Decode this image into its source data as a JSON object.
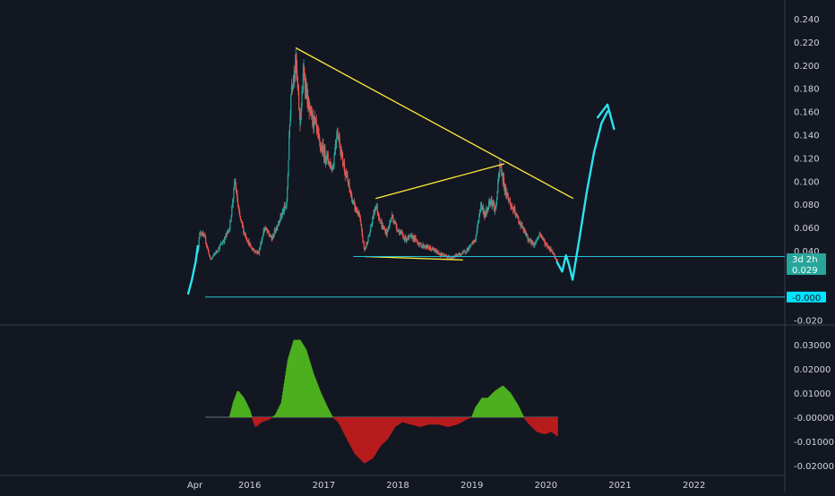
{
  "colors": {
    "background": "#131722",
    "axis_text": "#d1d4dc",
    "grid": "#1f2431",
    "pane_divider": "#3a3e4a",
    "candle_up": "#26a69a",
    "candle_down": "#ef5350",
    "trendline": "#ffeb3b",
    "drawing": "#29e3f0",
    "hline": "#22c1d6",
    "hist_up": "#4caf1f",
    "hist_down": "#b71c1c",
    "badge": "#26a69a",
    "badge_cyan": "#00e5ff"
  },
  "chart_data": [
    {
      "type": "candlestick",
      "title": "",
      "x_labels": [
        "Apr",
        "2016",
        "2017",
        "2018",
        "2019",
        "2020",
        "2021",
        "2022"
      ],
      "y_ticks": [
        "0.240",
        "0.220",
        "0.200",
        "0.180",
        "0.160",
        "0.140",
        "0.120",
        "0.100",
        "0.080",
        "0.060",
        "0.040",
        "-0.020"
      ],
      "ylim": [
        -0.02,
        0.24
      ],
      "x_range": [
        2015.0,
        2022.0
      ],
      "price_badges": [
        {
          "label": "3d 2h",
          "value": 0.036,
          "style": "badge"
        },
        {
          "label": "0.029",
          "value": 0.029,
          "style": "badge"
        },
        {
          "label": "-0.000",
          "value": 0.0,
          "style": "badge_cyan"
        }
      ],
      "price_path": [
        {
          "t": 2015.3,
          "v": 0.04
        },
        {
          "t": 2015.33,
          "v": 0.057
        },
        {
          "t": 2015.4,
          "v": 0.05
        },
        {
          "t": 2015.47,
          "v": 0.032
        },
        {
          "t": 2015.58,
          "v": 0.042
        },
        {
          "t": 2015.66,
          "v": 0.05
        },
        {
          "t": 2015.73,
          "v": 0.06
        },
        {
          "t": 2015.8,
          "v": 0.1
        },
        {
          "t": 2015.86,
          "v": 0.07
        },
        {
          "t": 2015.93,
          "v": 0.055
        },
        {
          "t": 2016.02,
          "v": 0.042
        },
        {
          "t": 2016.12,
          "v": 0.038
        },
        {
          "t": 2016.2,
          "v": 0.06
        },
        {
          "t": 2016.3,
          "v": 0.05
        },
        {
          "t": 2016.42,
          "v": 0.07
        },
        {
          "t": 2016.5,
          "v": 0.08
        },
        {
          "t": 2016.56,
          "v": 0.18
        },
        {
          "t": 2016.62,
          "v": 0.205
        },
        {
          "t": 2016.68,
          "v": 0.15
        },
        {
          "t": 2016.73,
          "v": 0.195
        },
        {
          "t": 2016.8,
          "v": 0.16
        },
        {
          "t": 2016.88,
          "v": 0.15
        },
        {
          "t": 2016.95,
          "v": 0.13
        },
        {
          "t": 2017.05,
          "v": 0.12
        },
        {
          "t": 2017.12,
          "v": 0.11
        },
        {
          "t": 2017.18,
          "v": 0.145
        },
        {
          "t": 2017.25,
          "v": 0.12
        },
        {
          "t": 2017.32,
          "v": 0.1
        },
        {
          "t": 2017.4,
          "v": 0.08
        },
        {
          "t": 2017.48,
          "v": 0.07
        },
        {
          "t": 2017.55,
          "v": 0.04
        },
        {
          "t": 2017.62,
          "v": 0.055
        },
        {
          "t": 2017.7,
          "v": 0.08
        },
        {
          "t": 2017.78,
          "v": 0.062
        },
        {
          "t": 2017.85,
          "v": 0.055
        },
        {
          "t": 2017.92,
          "v": 0.07
        },
        {
          "t": 2018.0,
          "v": 0.058
        },
        {
          "t": 2018.1,
          "v": 0.05
        },
        {
          "t": 2018.2,
          "v": 0.052
        },
        {
          "t": 2018.3,
          "v": 0.045
        },
        {
          "t": 2018.4,
          "v": 0.043
        },
        {
          "t": 2018.5,
          "v": 0.04
        },
        {
          "t": 2018.6,
          "v": 0.036
        },
        {
          "t": 2018.7,
          "v": 0.034
        },
        {
          "t": 2018.8,
          "v": 0.036
        },
        {
          "t": 2018.88,
          "v": 0.038
        },
        {
          "t": 2018.96,
          "v": 0.042
        },
        {
          "t": 2019.05,
          "v": 0.05
        },
        {
          "t": 2019.12,
          "v": 0.08
        },
        {
          "t": 2019.18,
          "v": 0.07
        },
        {
          "t": 2019.25,
          "v": 0.085
        },
        {
          "t": 2019.32,
          "v": 0.075
        },
        {
          "t": 2019.38,
          "v": 0.115
        },
        {
          "t": 2019.44,
          "v": 0.095
        },
        {
          "t": 2019.52,
          "v": 0.08
        },
        {
          "t": 2019.6,
          "v": 0.07
        },
        {
          "t": 2019.68,
          "v": 0.06
        },
        {
          "t": 2019.76,
          "v": 0.05
        },
        {
          "t": 2019.84,
          "v": 0.045
        },
        {
          "t": 2019.92,
          "v": 0.055
        },
        {
          "t": 2020.0,
          "v": 0.045
        },
        {
          "t": 2020.08,
          "v": 0.04
        },
        {
          "t": 2020.16,
          "v": 0.03
        }
      ],
      "trendlines": [
        {
          "from": {
            "t": 2016.62,
            "v": 0.215
          },
          "to": {
            "t": 2020.37,
            "v": 0.085
          }
        },
        {
          "from": {
            "t": 2017.7,
            "v": 0.085
          },
          "to": {
            "t": 2019.44,
            "v": 0.115
          }
        },
        {
          "from": {
            "t": 2017.55,
            "v": 0.035
          },
          "to": {
            "t": 2018.88,
            "v": 0.032
          }
        }
      ],
      "horizontal_lines": [
        {
          "value": 0.035,
          "t_start": 2017.4
        },
        {
          "value": 0.0,
          "t_start": 2015.4
        }
      ],
      "freehand_paths": [
        [
          {
            "t": 2015.17,
            "v": 0.003
          },
          {
            "t": 2015.22,
            "v": 0.015
          },
          {
            "t": 2015.27,
            "v": 0.03
          },
          {
            "t": 2015.3,
            "v": 0.044
          }
        ],
        [
          {
            "t": 2020.15,
            "v": 0.03
          },
          {
            "t": 2020.22,
            "v": 0.022
          },
          {
            "t": 2020.27,
            "v": 0.036
          },
          {
            "t": 2020.31,
            "v": 0.028
          },
          {
            "t": 2020.36,
            "v": 0.015
          },
          {
            "t": 2020.45,
            "v": 0.05
          },
          {
            "t": 2020.55,
            "v": 0.09
          },
          {
            "t": 2020.65,
            "v": 0.125
          },
          {
            "t": 2020.75,
            "v": 0.15
          },
          {
            "t": 2020.83,
            "v": 0.16
          }
        ],
        [
          {
            "t": 2020.7,
            "v": 0.155
          },
          {
            "t": 2020.83,
            "v": 0.166
          },
          {
            "t": 2020.92,
            "v": 0.145
          }
        ]
      ]
    },
    {
      "type": "bar",
      "title": "",
      "y_ticks": [
        "0.03000",
        "0.02000",
        "0.01000",
        "-0.00000",
        "-0.01000",
        "-0.02000"
      ],
      "ylim": [
        -0.022,
        0.036
      ],
      "x_range": [
        2015.0,
        2022.0
      ],
      "histogram_path": [
        {
          "t": 2015.73,
          "v": 0.0
        },
        {
          "t": 2015.78,
          "v": 0.006
        },
        {
          "t": 2015.84,
          "v": 0.011
        },
        {
          "t": 2015.92,
          "v": 0.008
        },
        {
          "t": 2016.0,
          "v": 0.003
        },
        {
          "t": 2016.03,
          "v": 0.0
        },
        {
          "t": 2016.08,
          "v": -0.004
        },
        {
          "t": 2016.16,
          "v": -0.002
        },
        {
          "t": 2016.26,
          "v": -0.001
        },
        {
          "t": 2016.35,
          "v": 0.001
        },
        {
          "t": 2016.43,
          "v": 0.006
        },
        {
          "t": 2016.52,
          "v": 0.024
        },
        {
          "t": 2016.6,
          "v": 0.032
        },
        {
          "t": 2016.68,
          "v": 0.032
        },
        {
          "t": 2016.76,
          "v": 0.028
        },
        {
          "t": 2016.86,
          "v": 0.018
        },
        {
          "t": 2016.96,
          "v": 0.01
        },
        {
          "t": 2017.05,
          "v": 0.004
        },
        {
          "t": 2017.12,
          "v": 0.0
        },
        {
          "t": 2017.2,
          "v": -0.002
        },
        {
          "t": 2017.3,
          "v": -0.008
        },
        {
          "t": 2017.42,
          "v": -0.015
        },
        {
          "t": 2017.55,
          "v": -0.019
        },
        {
          "t": 2017.66,
          "v": -0.017
        },
        {
          "t": 2017.76,
          "v": -0.012
        },
        {
          "t": 2017.86,
          "v": -0.009
        },
        {
          "t": 2017.96,
          "v": -0.004
        },
        {
          "t": 2018.06,
          "v": -0.002
        },
        {
          "t": 2018.18,
          "v": -0.003
        },
        {
          "t": 2018.3,
          "v": -0.004
        },
        {
          "t": 2018.42,
          "v": -0.003
        },
        {
          "t": 2018.55,
          "v": -0.003
        },
        {
          "t": 2018.68,
          "v": -0.004
        },
        {
          "t": 2018.8,
          "v": -0.003
        },
        {
          "t": 2018.92,
          "v": -0.001
        },
        {
          "t": 2019.0,
          "v": 0.0
        },
        {
          "t": 2019.05,
          "v": 0.004
        },
        {
          "t": 2019.14,
          "v": 0.008
        },
        {
          "t": 2019.22,
          "v": 0.008
        },
        {
          "t": 2019.32,
          "v": 0.011
        },
        {
          "t": 2019.42,
          "v": 0.013
        },
        {
          "t": 2019.52,
          "v": 0.01
        },
        {
          "t": 2019.62,
          "v": 0.005
        },
        {
          "t": 2019.7,
          "v": 0.0
        },
        {
          "t": 2019.78,
          "v": -0.003
        },
        {
          "t": 2019.88,
          "v": -0.006
        },
        {
          "t": 2019.98,
          "v": -0.007
        },
        {
          "t": 2020.08,
          "v": -0.006
        },
        {
          "t": 2020.16,
          "v": -0.008
        }
      ]
    }
  ]
}
